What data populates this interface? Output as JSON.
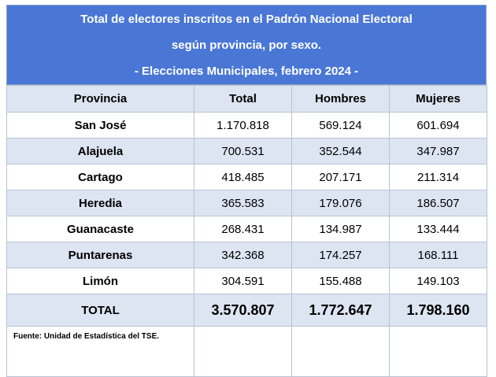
{
  "title": {
    "line1": "Total de electores inscritos en el Padrón Nacional Electoral",
    "line2": "según provincia, por sexo.",
    "line3": "- Elecciones Municipales, febrero 2024 -"
  },
  "columns": [
    "Provincia",
    "Total",
    "Hombres",
    "Mujeres"
  ],
  "rows": [
    {
      "provincia": "San José",
      "total": "1.170.818",
      "hombres": "569.124",
      "mujeres": "601.694"
    },
    {
      "provincia": "Alajuela",
      "total": "700.531",
      "hombres": "352.544",
      "mujeres": "347.987"
    },
    {
      "provincia": "Cartago",
      "total": "418.485",
      "hombres": "207.171",
      "mujeres": "211.314"
    },
    {
      "provincia": "Heredia",
      "total": "365.583",
      "hombres": "179.076",
      "mujeres": "186.507"
    },
    {
      "provincia": "Guanacaste",
      "total": "268.431",
      "hombres": "134.987",
      "mujeres": "133.444"
    },
    {
      "provincia": "Puntarenas",
      "total": "342.368",
      "hombres": "174.257",
      "mujeres": "168.111"
    },
    {
      "provincia": "Limón",
      "total": "304.591",
      "hombres": "155.488",
      "mujeres": "149.103"
    }
  ],
  "totals": {
    "label": "TOTAL",
    "total": "3.570.807",
    "hombres": "1.772.647",
    "mujeres": "1.798.160"
  },
  "footer": {
    "source": "Fuente: Unidad de Estadística del TSE."
  },
  "colors": {
    "header_blue": "#4a77d6",
    "row_shade": "#dde4f2"
  }
}
